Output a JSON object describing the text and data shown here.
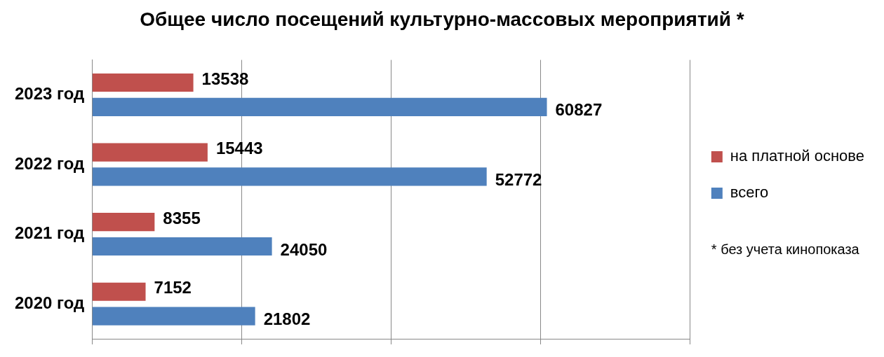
{
  "chart_data": {
    "type": "bar",
    "orientation": "horizontal",
    "title": "Общее число посещений культурно-массовых мероприятий *",
    "categories": [
      "2023 год",
      "2022 год",
      "2021 год",
      "2020 год"
    ],
    "series": [
      {
        "name": "на платной основе",
        "color": "#c0504d",
        "values": [
          13538,
          15443,
          8355,
          7152
        ]
      },
      {
        "name": "всего",
        "color": "#4f81bd",
        "values": [
          60827,
          52772,
          24050,
          21802
        ]
      }
    ],
    "xlim": [
      0,
      80000
    ],
    "xticks": [
      {
        "value": 0,
        "label": null
      },
      {
        "value": 20000,
        "label": null
      },
      {
        "value": 40000,
        "label": null
      },
      {
        "value": 60000,
        "label": null
      },
      {
        "value": 80000,
        "label": null
      }
    ],
    "tick_labels": "y",
    "grid": "x",
    "legend": "right",
    "data_labels": true,
    "annotations": [
      "* без учета кинопоказа"
    ]
  }
}
